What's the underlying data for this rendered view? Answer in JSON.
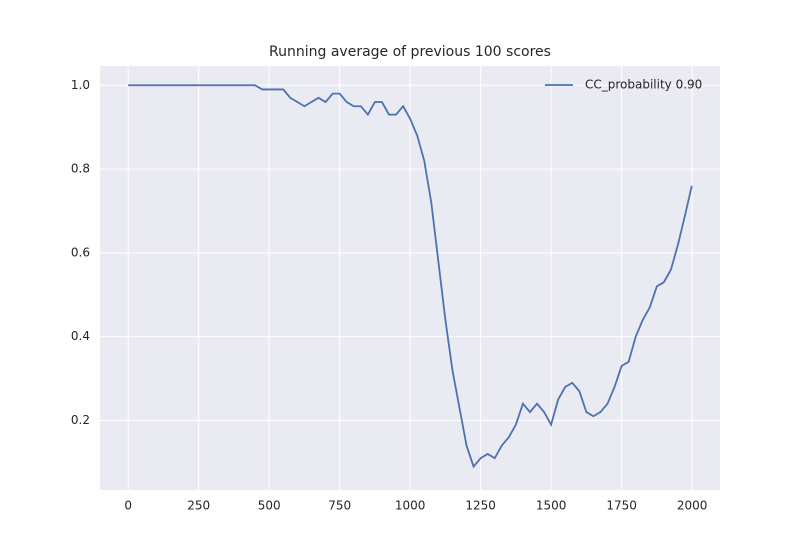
{
  "chart_data": {
    "type": "line",
    "title": "Running average of previous 100 scores",
    "x": [
      0,
      25,
      50,
      75,
      100,
      125,
      150,
      175,
      200,
      225,
      250,
      275,
      300,
      325,
      350,
      375,
      400,
      425,
      450,
      475,
      500,
      525,
      550,
      575,
      600,
      625,
      650,
      675,
      700,
      725,
      750,
      775,
      800,
      825,
      850,
      875,
      900,
      925,
      950,
      975,
      1000,
      1025,
      1050,
      1075,
      1100,
      1125,
      1150,
      1175,
      1200,
      1225,
      1250,
      1275,
      1300,
      1325,
      1350,
      1375,
      1400,
      1425,
      1450,
      1475,
      1500,
      1525,
      1550,
      1575,
      1600,
      1625,
      1650,
      1675,
      1700,
      1725,
      1750,
      1775,
      1800,
      1825,
      1850,
      1875,
      1900,
      1925,
      1950,
      1975,
      1999
    ],
    "series": [
      {
        "name": "CC_probability 0.90",
        "color": "#4c72b0",
        "values": [
          1.0,
          1.0,
          1.0,
          1.0,
          1.0,
          1.0,
          1.0,
          1.0,
          1.0,
          1.0,
          1.0,
          1.0,
          1.0,
          1.0,
          1.0,
          1.0,
          1.0,
          1.0,
          1.0,
          0.99,
          0.99,
          0.99,
          0.99,
          0.97,
          0.96,
          0.95,
          0.96,
          0.97,
          0.96,
          0.98,
          0.98,
          0.96,
          0.95,
          0.95,
          0.93,
          0.96,
          0.96,
          0.93,
          0.93,
          0.95,
          0.92,
          0.88,
          0.82,
          0.72,
          0.58,
          0.44,
          0.32,
          0.23,
          0.14,
          0.09,
          0.11,
          0.12,
          0.11,
          0.14,
          0.16,
          0.19,
          0.24,
          0.22,
          0.24,
          0.22,
          0.19,
          0.25,
          0.28,
          0.29,
          0.27,
          0.22,
          0.21,
          0.22,
          0.24,
          0.28,
          0.33,
          0.34,
          0.4,
          0.44,
          0.47,
          0.52,
          0.53,
          0.56,
          0.62,
          0.69,
          0.76
        ]
      }
    ],
    "xlim": [
      -100,
      2099
    ],
    "ylim": [
      0.034,
      1.046
    ],
    "xticks": [
      0,
      250,
      500,
      750,
      1000,
      1250,
      1500,
      1750,
      2000
    ],
    "yticks": [
      0.2,
      0.4,
      0.6,
      0.8,
      {
        "value": 1,
        "label": "1.0"
      }
    ],
    "grid": true,
    "legend": "upper right"
  }
}
